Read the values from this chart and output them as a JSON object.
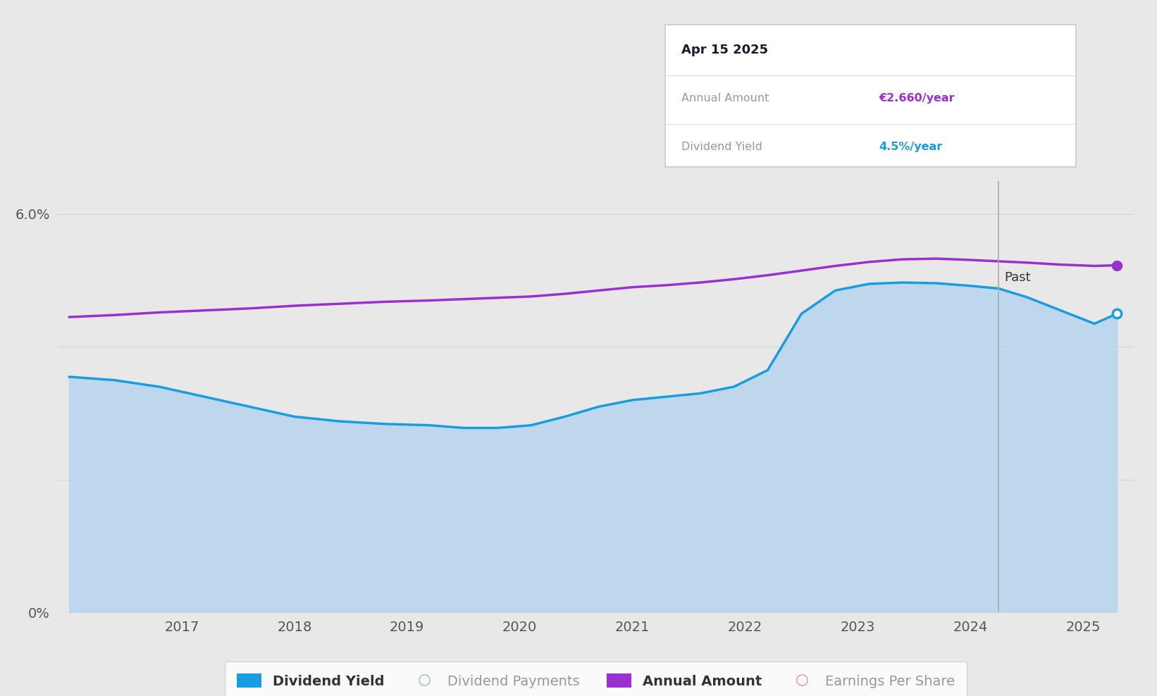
{
  "background_color": "#e8e8e8",
  "chart_area_color": "#e8e8e8",
  "grid_color": "#cccccc",
  "x_years": [
    2016.0,
    2016.4,
    2016.8,
    2017.2,
    2017.6,
    2018.0,
    2018.4,
    2018.8,
    2019.2,
    2019.5,
    2019.8,
    2020.1,
    2020.4,
    2020.7,
    2021.0,
    2021.3,
    2021.6,
    2021.9,
    2022.2,
    2022.5,
    2022.8,
    2023.1,
    2023.4,
    2023.7,
    2024.0,
    2024.25,
    2024.5,
    2024.8,
    2025.1,
    2025.3
  ],
  "dividend_yield": [
    3.55,
    3.5,
    3.4,
    3.25,
    3.1,
    2.95,
    2.88,
    2.84,
    2.82,
    2.78,
    2.78,
    2.82,
    2.95,
    3.1,
    3.2,
    3.25,
    3.3,
    3.4,
    3.65,
    4.5,
    4.85,
    4.95,
    4.97,
    4.96,
    4.92,
    4.88,
    4.75,
    4.55,
    4.35,
    4.5
  ],
  "annual_amount_y": [
    4.45,
    4.48,
    4.52,
    4.55,
    4.58,
    4.62,
    4.65,
    4.68,
    4.7,
    4.72,
    4.74,
    4.76,
    4.8,
    4.85,
    4.9,
    4.93,
    4.97,
    5.02,
    5.08,
    5.15,
    5.22,
    5.28,
    5.32,
    5.33,
    5.31,
    5.29,
    5.27,
    5.24,
    5.22,
    5.23
  ],
  "fill_color_top": "#b8d4ee",
  "fill_color_bottom": "#d8eaf8",
  "line_blue": "#1a9de0",
  "line_purple": "#9b30d0",
  "vertical_line_x": 2024.25,
  "vertical_line_color": "#aaaaaa",
  "ylim_min": 0,
  "ylim_max": 6.5,
  "xlim_min": 2015.9,
  "xlim_max": 2025.45,
  "xtick_positions": [
    2017,
    2018,
    2019,
    2020,
    2021,
    2022,
    2023,
    2024,
    2025
  ],
  "tooltip_title": "Apr 15 2025",
  "tooltip_annual_label": "Annual Amount",
  "tooltip_annual_value": "€2.660/year",
  "tooltip_yield_label": "Dividend Yield",
  "tooltip_yield_value": "4.5%/year",
  "tooltip_annual_color": "#9b30d0",
  "tooltip_yield_color": "#1a9de0",
  "past_label": "Past",
  "past_label_color": "#333333",
  "legend_items": [
    {
      "label": "Dividend Yield",
      "color": "#1a9de0",
      "type": "filled"
    },
    {
      "label": "Dividend Payments",
      "color": "#90c8b0",
      "type": "circle"
    },
    {
      "label": "Annual Amount",
      "color": "#9b30d0",
      "type": "filled"
    },
    {
      "label": "Earnings Per Share",
      "color": "#e090b0",
      "type": "circle"
    }
  ]
}
